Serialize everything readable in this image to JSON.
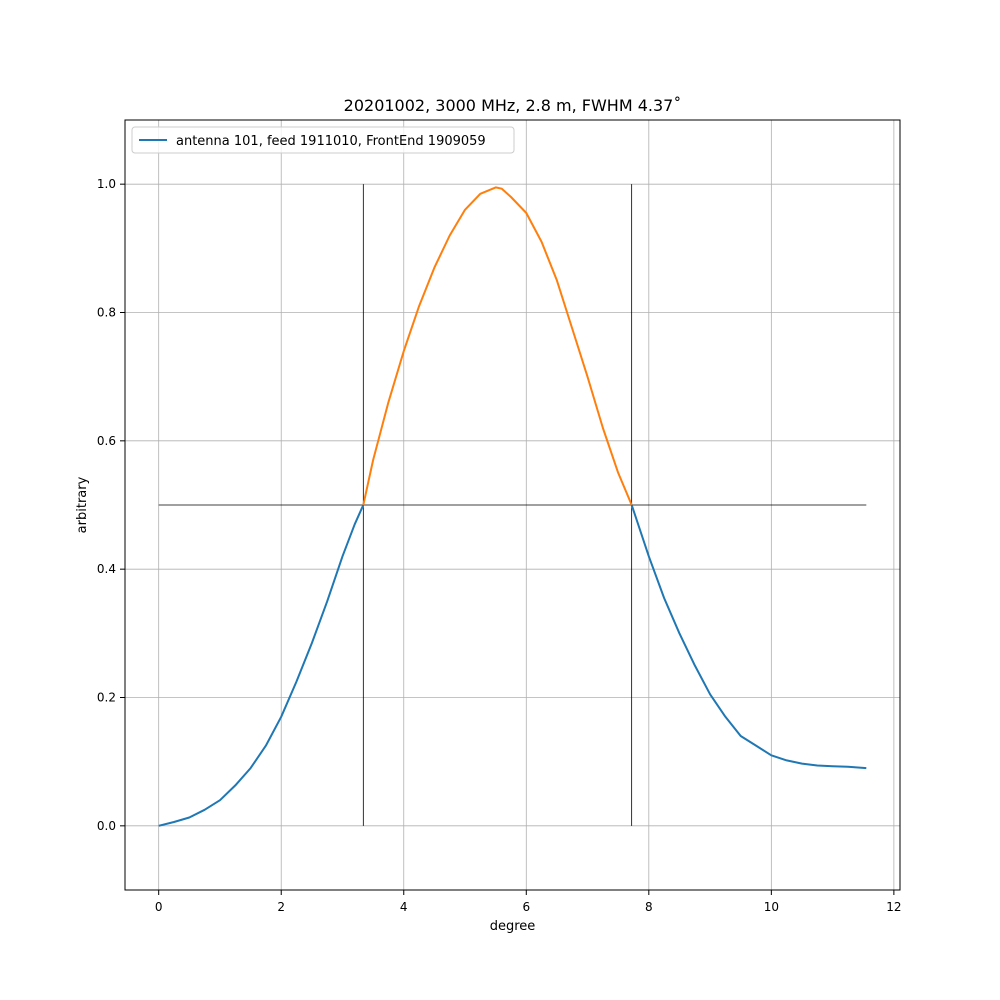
{
  "chart_data": {
    "type": "line",
    "title": "20201002, 3000 MHz, 2.8 m, FWHM 4.37˚",
    "xlabel": "degree",
    "ylabel": "arbitrary",
    "xlim": [
      -0.55,
      12.1
    ],
    "ylim": [
      -0.1,
      1.1
    ],
    "xticks": [
      0,
      2,
      4,
      6,
      8,
      10,
      12
    ],
    "yticks": [
      0.0,
      0.2,
      0.4,
      0.6,
      0.8,
      1.0
    ],
    "xtick_labels": [
      "0",
      "2",
      "4",
      "6",
      "8",
      "10",
      "12"
    ],
    "ytick_labels": [
      "0.0",
      "0.2",
      "0.4",
      "0.6",
      "0.8",
      "1.0"
    ],
    "grid": true,
    "legend_position": "top-left",
    "series": [
      {
        "name": "antenna 101, feed 1911010, FrontEnd 1909059",
        "color": "#1f77b4",
        "x": [
          0.0,
          0.25,
          0.5,
          0.75,
          1.0,
          1.25,
          1.5,
          1.75,
          2.0,
          2.25,
          2.5,
          2.75,
          3.0,
          3.2,
          3.34
        ],
        "y": [
          0.0,
          0.006,
          0.013,
          0.025,
          0.04,
          0.063,
          0.09,
          0.125,
          0.17,
          0.225,
          0.285,
          0.35,
          0.42,
          0.47,
          0.5
        ]
      },
      {
        "name": "",
        "color": "#ff7f0e",
        "x": [
          3.34,
          3.5,
          3.75,
          4.0,
          4.25,
          4.5,
          4.75,
          5.0,
          5.25,
          5.5,
          5.6,
          5.75,
          6.0,
          6.25,
          6.5,
          6.75,
          7.0,
          7.25,
          7.5,
          7.72
        ],
        "y": [
          0.5,
          0.57,
          0.66,
          0.74,
          0.81,
          0.87,
          0.92,
          0.96,
          0.985,
          0.995,
          0.993,
          0.98,
          0.955,
          0.91,
          0.85,
          0.775,
          0.7,
          0.62,
          0.55,
          0.5
        ]
      },
      {
        "name": "",
        "color": "#1f77b4",
        "x": [
          7.72,
          8.0,
          8.25,
          8.5,
          8.75,
          9.0,
          9.25,
          9.5,
          9.75,
          10.0,
          10.25,
          10.5,
          10.75,
          11.0,
          11.25,
          11.55
        ],
        "y": [
          0.5,
          0.42,
          0.355,
          0.3,
          0.25,
          0.205,
          0.17,
          0.14,
          0.125,
          0.11,
          0.102,
          0.097,
          0.094,
          0.093,
          0.092,
          0.09
        ]
      }
    ],
    "reference_lines": [
      {
        "kind": "horizontal",
        "y": 0.5,
        "x_range": [
          0.0,
          11.55
        ],
        "color": "#000000"
      },
      {
        "kind": "vertical",
        "x": 3.34,
        "y_range": [
          0.0,
          1.0
        ],
        "color": "#000000"
      },
      {
        "kind": "vertical",
        "x": 7.72,
        "y_range": [
          0.0,
          1.0
        ],
        "color": "#000000"
      }
    ]
  }
}
